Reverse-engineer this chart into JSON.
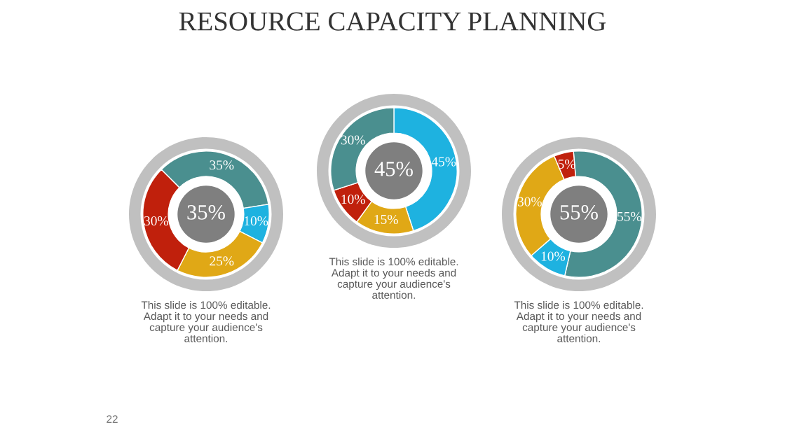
{
  "chart_data": [
    {
      "type": "donut",
      "title": "RESOURCE CAPACITY PLANNING",
      "categories": [
        null,
        null,
        null,
        null
      ],
      "values": [
        35,
        10,
        25,
        30
      ],
      "value_labels": [
        "35%",
        "10%",
        "25%",
        "30%"
      ],
      "colors": [
        "#4a8f8f",
        "#1eb2e0",
        "#e0a816",
        "#c0200c"
      ],
      "annotations": [
        "35%",
        "This slide is 100% editable.\nAdapt it to your needs and\ncapture your audience's\nattention.",
        "22"
      ]
    },
    {
      "type": "donut",
      "categories": [
        null,
        null,
        null,
        null
      ],
      "values": [
        45,
        15,
        10,
        30
      ],
      "value_labels": [
        "45%",
        "15%",
        "10%",
        "30%"
      ],
      "colors": [
        "#1eb2e0",
        "#e0a816",
        "#c0200c",
        "#4a8f8f"
      ],
      "annotations": [
        "45%",
        "This slide is 100% editable.\nAdapt it to your needs and\ncapture your audience's\nattention."
      ]
    },
    {
      "type": "donut",
      "categories": [
        null,
        null,
        null,
        null
      ],
      "values": [
        55,
        10,
        30,
        5
      ],
      "value_labels": [
        "55%",
        "10%",
        "30%",
        "5%"
      ],
      "colors": [
        "#4a8f8f",
        "#1eb2e0",
        "#e0a816",
        "#c0200c"
      ],
      "annotations": [
        "55%",
        "This slide is 100% editable.\nAdapt it to your needs and\ncapture your audience's\nattention."
      ]
    }
  ]
}
